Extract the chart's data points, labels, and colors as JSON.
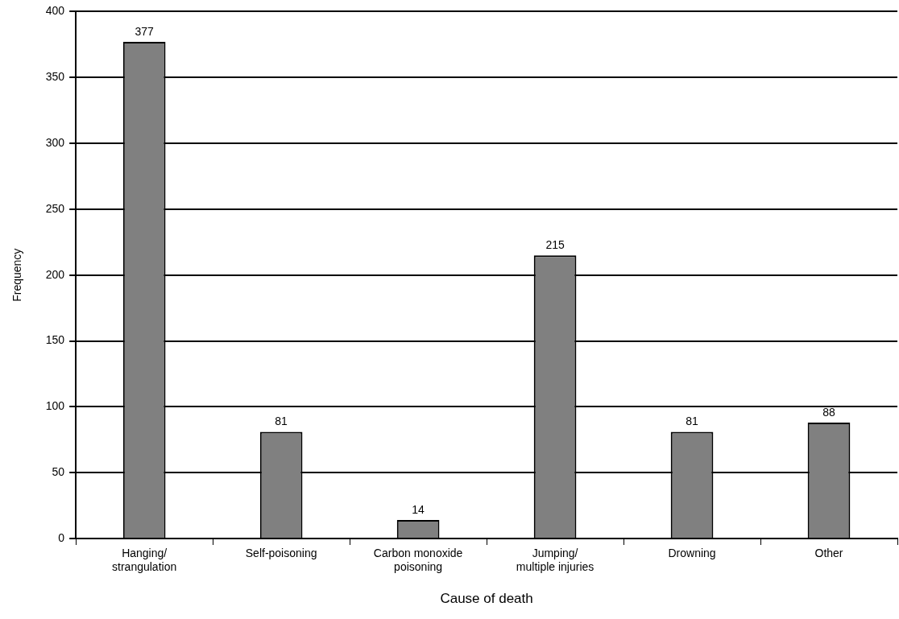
{
  "chart_data": {
    "type": "bar",
    "xlabel": "Cause of death",
    "ylabel": "Frequency",
    "categories": [
      "Hanging/\nstrangulation",
      "Self-poisoning",
      "Carbon monoxide\npoisoning",
      "Jumping/\nmultiple injuries",
      "Drowning",
      "Other"
    ],
    "values": [
      377,
      81,
      14,
      215,
      81,
      88
    ],
    "color": "#808080",
    "ylim": [
      0,
      400
    ],
    "yticks": [
      0,
      50,
      100,
      150,
      200,
      250,
      300,
      350,
      400
    ],
    "grid": "y",
    "data_labels": true
  }
}
